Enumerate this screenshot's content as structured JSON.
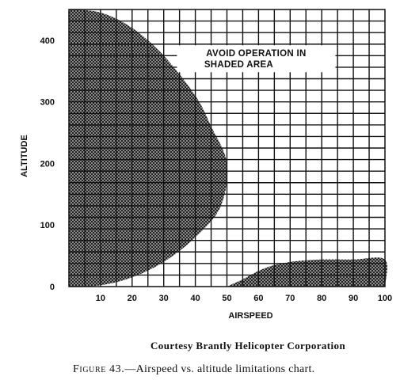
{
  "chart_data": {
    "type": "area",
    "x": [
      0,
      10,
      20,
      30,
      40,
      50,
      60,
      70,
      80,
      90,
      100
    ],
    "xlabel": "AIRSPEED",
    "ylabel": "ALTITUDE",
    "xlim": [
      0,
      100
    ],
    "ylim": [
      0,
      450
    ],
    "x_ticks": [
      10,
      20,
      30,
      40,
      50,
      60,
      70,
      80,
      90,
      100
    ],
    "y_ticks": [
      0,
      100,
      200,
      300,
      400
    ],
    "grid": true,
    "regions": [
      {
        "name": "",
        "boundary": [
          [
            0,
            450
          ],
          [
            10,
            445
          ],
          [
            20,
            420
          ],
          [
            30,
            375
          ],
          [
            40,
            310
          ],
          [
            45,
            260
          ],
          [
            50,
            200
          ],
          [
            48,
            130
          ],
          [
            40,
            80
          ],
          [
            30,
            40
          ],
          [
            20,
            15
          ],
          [
            10,
            2
          ],
          [
            0,
            0
          ]
        ]
      },
      {
        "name": "",
        "boundary": [
          [
            50,
            0
          ],
          [
            55,
            12
          ],
          [
            62,
            30
          ],
          [
            70,
            40
          ],
          [
            80,
            44
          ],
          [
            90,
            44
          ],
          [
            100,
            44
          ],
          [
            100,
            0
          ]
        ]
      }
    ],
    "annotations": [
      {
        "lines": [
          "AVOID OPERATION IN",
          "SHADED AREA"
        ],
        "x": 55,
        "y": 370
      }
    ]
  },
  "credit": "Courtesy Brantly Helicopter Corporation",
  "caption": {
    "label": "Figure 43.",
    "text": "—Airspeed vs. altitude limitations chart."
  }
}
